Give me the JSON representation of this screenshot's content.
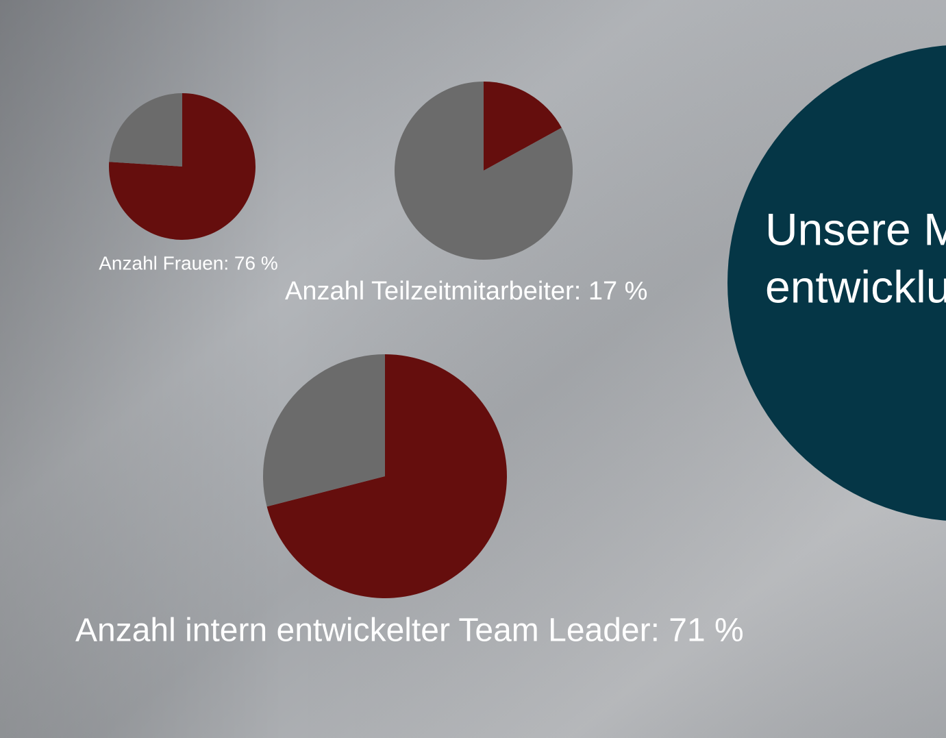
{
  "chart_data": [
    {
      "type": "pie",
      "label": "Anzahl Frauen: 76 %",
      "values": [
        76,
        24
      ],
      "colors": [
        "#650e0d",
        "#6b6b6b"
      ]
    },
    {
      "type": "pie",
      "label": "Anzahl Teilzeitmitarbeiter: 17 %",
      "values": [
        17,
        83
      ],
      "colors": [
        "#650e0d",
        "#6b6b6b"
      ]
    },
    {
      "type": "pie",
      "label": "Anzahl intern entwickelter Team Leader: 71 %",
      "values": [
        71,
        29
      ],
      "colors": [
        "#650e0d",
        "#6b6b6b"
      ]
    }
  ],
  "heading": {
    "lines": [
      "Unsere M",
      "entwicklu"
    ]
  }
}
